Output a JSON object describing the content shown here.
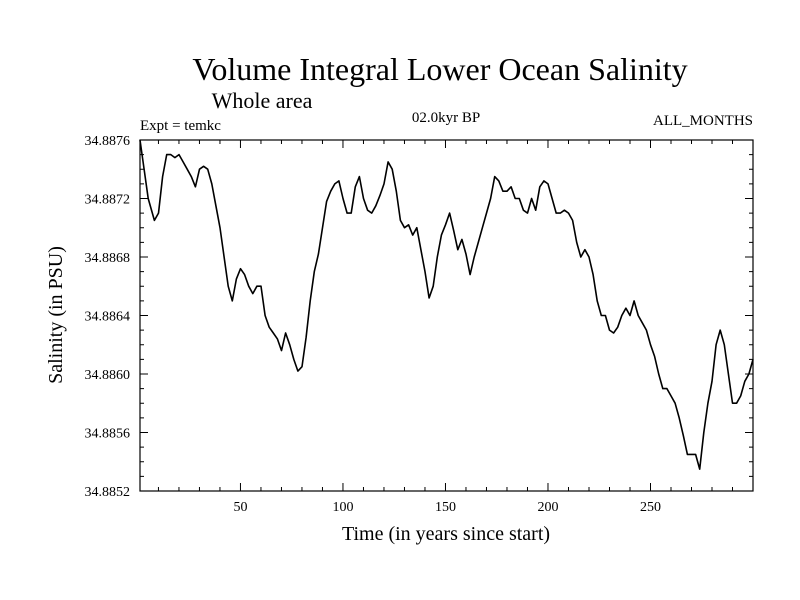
{
  "header": {
    "title": "Volume Integral Lower Ocean Salinity",
    "subtitle": "Whole area",
    "left_label": "Expt = temkc",
    "center_label": "02.0kyr BP",
    "right_label": "ALL_MONTHS"
  },
  "chart_data": {
    "type": "line",
    "title": "Volume Integral Lower Ocean Salinity",
    "subtitle": "Whole area",
    "xlabel": "Time (in years since start)",
    "ylabel": "Salinity (in PSU)",
    "xlim": [
      1,
      300
    ],
    "ylim": [
      34.8852,
      34.8876
    ],
    "x_ticks": [
      50,
      100,
      150,
      200,
      250
    ],
    "x_tick_labels": [
      "50",
      "100",
      "150",
      "200",
      "250"
    ],
    "y_ticks": [
      34.8852,
      34.8856,
      34.886,
      34.8864,
      34.8868,
      34.8872,
      34.8876
    ],
    "y_tick_labels": [
      "34.8852",
      "34.8856",
      "34.8860",
      "34.8864",
      "34.8868",
      "34.8872",
      "34.8876"
    ],
    "grid": false,
    "series": [
      {
        "name": "Salinity",
        "x": [
          1,
          3,
          5,
          8,
          10,
          12,
          14,
          16,
          18,
          20,
          22,
          24,
          26,
          28,
          30,
          32,
          34,
          36,
          38,
          40,
          42,
          44,
          46,
          48,
          50,
          52,
          54,
          56,
          58,
          60,
          62,
          64,
          66,
          68,
          70,
          72,
          74,
          76,
          78,
          80,
          82,
          84,
          86,
          88,
          90,
          92,
          94,
          96,
          98,
          100,
          102,
          104,
          106,
          108,
          110,
          112,
          114,
          116,
          118,
          120,
          122,
          124,
          126,
          128,
          130,
          132,
          134,
          136,
          138,
          140,
          142,
          144,
          146,
          148,
          150,
          152,
          154,
          156,
          158,
          160,
          162,
          164,
          166,
          168,
          170,
          172,
          174,
          176,
          178,
          180,
          182,
          184,
          186,
          188,
          190,
          192,
          194,
          196,
          198,
          200,
          202,
          204,
          206,
          208,
          210,
          212,
          214,
          216,
          218,
          220,
          222,
          224,
          226,
          228,
          230,
          232,
          234,
          236,
          238,
          240,
          242,
          244,
          246,
          248,
          250,
          252,
          254,
          256,
          258,
          260,
          262,
          264,
          266,
          268,
          270,
          272,
          274,
          276,
          278,
          280,
          282,
          284,
          286,
          288,
          290,
          292,
          294,
          296,
          298,
          300
        ],
        "values": [
          34.8876,
          34.8874,
          34.8872,
          34.88705,
          34.8871,
          34.88735,
          34.8875,
          34.8875,
          34.88748,
          34.8875,
          34.88745,
          34.8874,
          34.88735,
          34.88728,
          34.8874,
          34.88742,
          34.8874,
          34.8873,
          34.88715,
          34.887,
          34.8868,
          34.8866,
          34.8865,
          34.88665,
          34.88672,
          34.88668,
          34.8866,
          34.88655,
          34.8866,
          34.8866,
          34.8864,
          34.88632,
          34.88628,
          34.88624,
          34.88616,
          34.88628,
          34.8862,
          34.8861,
          34.88602,
          34.88605,
          34.88625,
          34.8865,
          34.8867,
          34.88682,
          34.887,
          34.88718,
          34.88725,
          34.8873,
          34.88732,
          34.8872,
          34.8871,
          34.8871,
          34.88728,
          34.88735,
          34.8872,
          34.88712,
          34.8871,
          34.88715,
          34.88722,
          34.8873,
          34.88745,
          34.8874,
          34.88725,
          34.88705,
          34.887,
          34.88702,
          34.88695,
          34.887,
          34.88685,
          34.8867,
          34.88652,
          34.8866,
          34.8868,
          34.88695,
          34.88702,
          34.8871,
          34.88698,
          34.88685,
          34.88692,
          34.88682,
          34.88668,
          34.8868,
          34.8869,
          34.887,
          34.8871,
          34.8872,
          34.88735,
          34.88732,
          34.88725,
          34.88725,
          34.88728,
          34.8872,
          34.8872,
          34.88712,
          34.8871,
          34.8872,
          34.88712,
          34.88728,
          34.88732,
          34.8873,
          34.8872,
          34.8871,
          34.8871,
          34.88712,
          34.8871,
          34.88705,
          34.8869,
          34.8868,
          34.88685,
          34.8868,
          34.88668,
          34.8865,
          34.8864,
          34.8864,
          34.8863,
          34.88628,
          34.88632,
          34.8864,
          34.88645,
          34.8864,
          34.8865,
          34.8864,
          34.88635,
          34.8863,
          34.8862,
          34.88612,
          34.886,
          34.8859,
          34.8859,
          34.88585,
          34.8858,
          34.8857,
          34.88558,
          34.88545,
          34.88545,
          34.88545,
          34.88535,
          34.8856,
          34.8858,
          34.88595,
          34.8862,
          34.8863,
          34.8862,
          34.886,
          34.8858,
          34.8858,
          34.88585,
          34.88595,
          34.886,
          34.8861
        ]
      }
    ]
  }
}
